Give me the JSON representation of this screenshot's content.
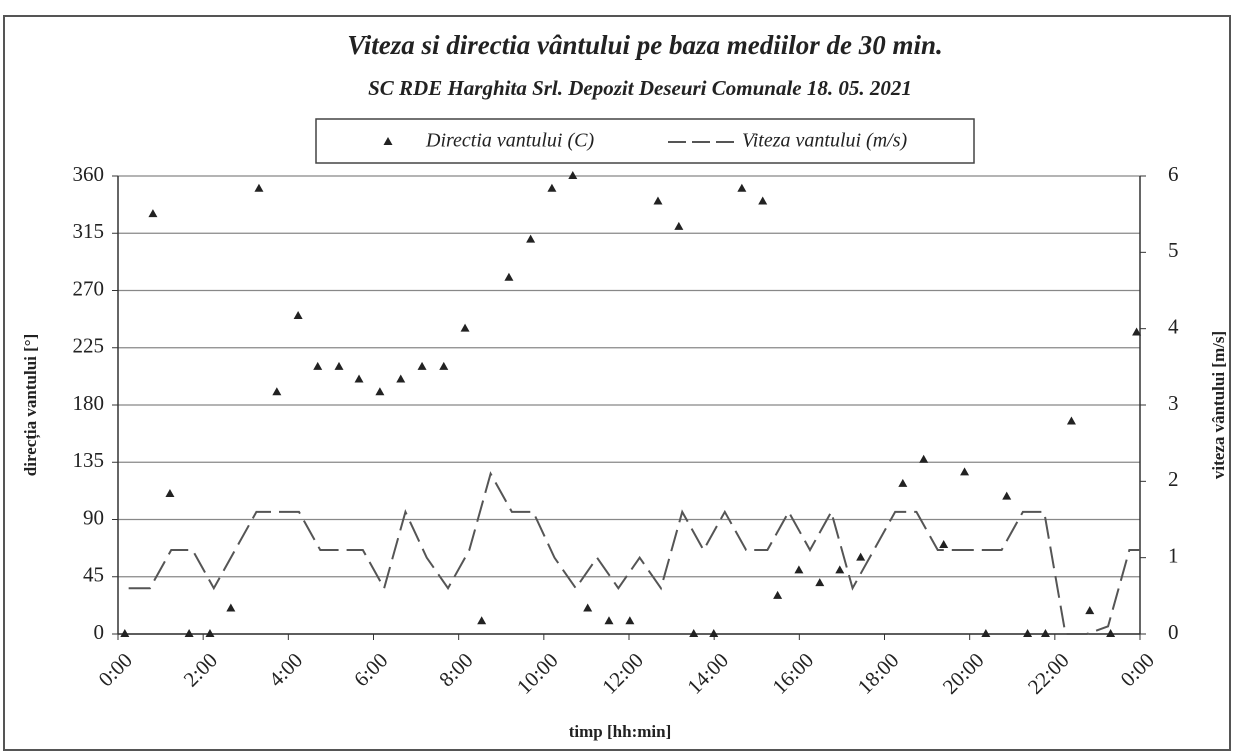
{
  "chart_data": {
    "type": "scatter-line",
    "title": "Viteza si directia vântului pe baza mediilor de 30 min.",
    "subtitle": "SC RDE Harghita Srl. Depozit Deseuri Comunale 18. 05. 2021",
    "x_label": "timp [hh:min]",
    "y_label": "direcția vantului [°]",
    "y2_label": "viteza  vântului [m/s]",
    "xlim": [
      0,
      24
    ],
    "xticks": [
      {
        "value": 0,
        "label": "0:00"
      },
      {
        "value": 2,
        "label": "2:00"
      },
      {
        "value": 4,
        "label": "4:00"
      },
      {
        "value": 6,
        "label": "6:00"
      },
      {
        "value": 8,
        "label": "8:00"
      },
      {
        "value": 10,
        "label": "10:00"
      },
      {
        "value": 12,
        "label": "12:00"
      },
      {
        "value": 14,
        "label": "14:00"
      },
      {
        "value": 16,
        "label": "16:00"
      },
      {
        "value": 18,
        "label": "18:00"
      },
      {
        "value": 20,
        "label": "20:00"
      },
      {
        "value": 22,
        "label": "22:00"
      },
      {
        "value": 24,
        "label": "0:00"
      }
    ],
    "ylim": [
      0,
      360
    ],
    "yticks": [
      0,
      45,
      90,
      135,
      180,
      225,
      270,
      315,
      360
    ],
    "y2lim": [
      0,
      6
    ],
    "y2ticks": [
      0,
      1,
      2,
      3,
      4,
      5,
      6
    ],
    "grid": true,
    "legend": "top",
    "series": [
      {
        "name": "Directia vantului (C)",
        "color": "#222222",
        "marker": "triangle",
        "x": [
          0.16,
          0.82,
          1.22,
          1.67,
          2.16,
          2.65,
          3.31,
          3.73,
          4.23,
          4.69,
          5.19,
          5.66,
          6.15,
          6.64,
          7.14,
          7.65,
          8.15,
          8.54,
          9.18,
          9.69,
          10.19,
          10.68,
          11.03,
          11.53,
          12.02,
          12.68,
          13.17,
          13.52,
          13.99,
          14.65,
          15.14,
          15.49,
          15.99,
          16.48,
          16.95,
          17.44,
          18.43,
          18.92,
          19.39,
          19.88,
          20.38,
          20.87,
          21.36,
          21.78,
          22.39,
          22.82,
          23.31,
          23.92
        ],
        "values": [
          0,
          330,
          110,
          0,
          0,
          20,
          350,
          190,
          250,
          210,
          210,
          200,
          190,
          200,
          210,
          210,
          240,
          10,
          280,
          310,
          350,
          360,
          20,
          10,
          10,
          340,
          320,
          0,
          0,
          350,
          340,
          30,
          50,
          40,
          50,
          60,
          118,
          137,
          70,
          127,
          0,
          108,
          0,
          0,
          167,
          18,
          0,
          237
        ]
      },
      {
        "name": "Viteza vantului (m/s)",
        "color": "#555555",
        "axis": "y2",
        "dash": "dashed",
        "x": [
          0.25,
          0.75,
          1.25,
          1.75,
          2.25,
          2.75,
          3.25,
          3.75,
          4.25,
          4.75,
          5.25,
          5.75,
          6.25,
          6.75,
          7.25,
          7.75,
          8.25,
          8.75,
          9.25,
          9.75,
          10.25,
          10.75,
          11.25,
          11.75,
          12.25,
          12.75,
          13.25,
          13.75,
          14.25,
          14.75,
          15.25,
          15.75,
          16.25,
          16.75,
          17.25,
          17.75,
          18.25,
          18.75,
          19.25,
          19.75,
          20.25,
          20.75,
          21.25,
          21.75,
          22.25,
          22.75,
          23.25,
          23.75,
          24
        ],
        "values": [
          0.6,
          0.6,
          1.1,
          1.1,
          0.6,
          1.1,
          1.6,
          1.6,
          1.6,
          1.1,
          1.1,
          1.1,
          0.6,
          1.6,
          1.0,
          0.6,
          1.1,
          2.1,
          1.6,
          1.6,
          1.0,
          0.6,
          1.0,
          0.6,
          1.0,
          0.6,
          1.6,
          1.1,
          1.6,
          1.1,
          1.1,
          1.6,
          1.1,
          1.6,
          0.6,
          1.1,
          1.6,
          1.6,
          1.1,
          1.1,
          1.1,
          1.1,
          1.6,
          1.6,
          0.0,
          0.0,
          0.1,
          1.1,
          1.1
        ]
      }
    ]
  }
}
